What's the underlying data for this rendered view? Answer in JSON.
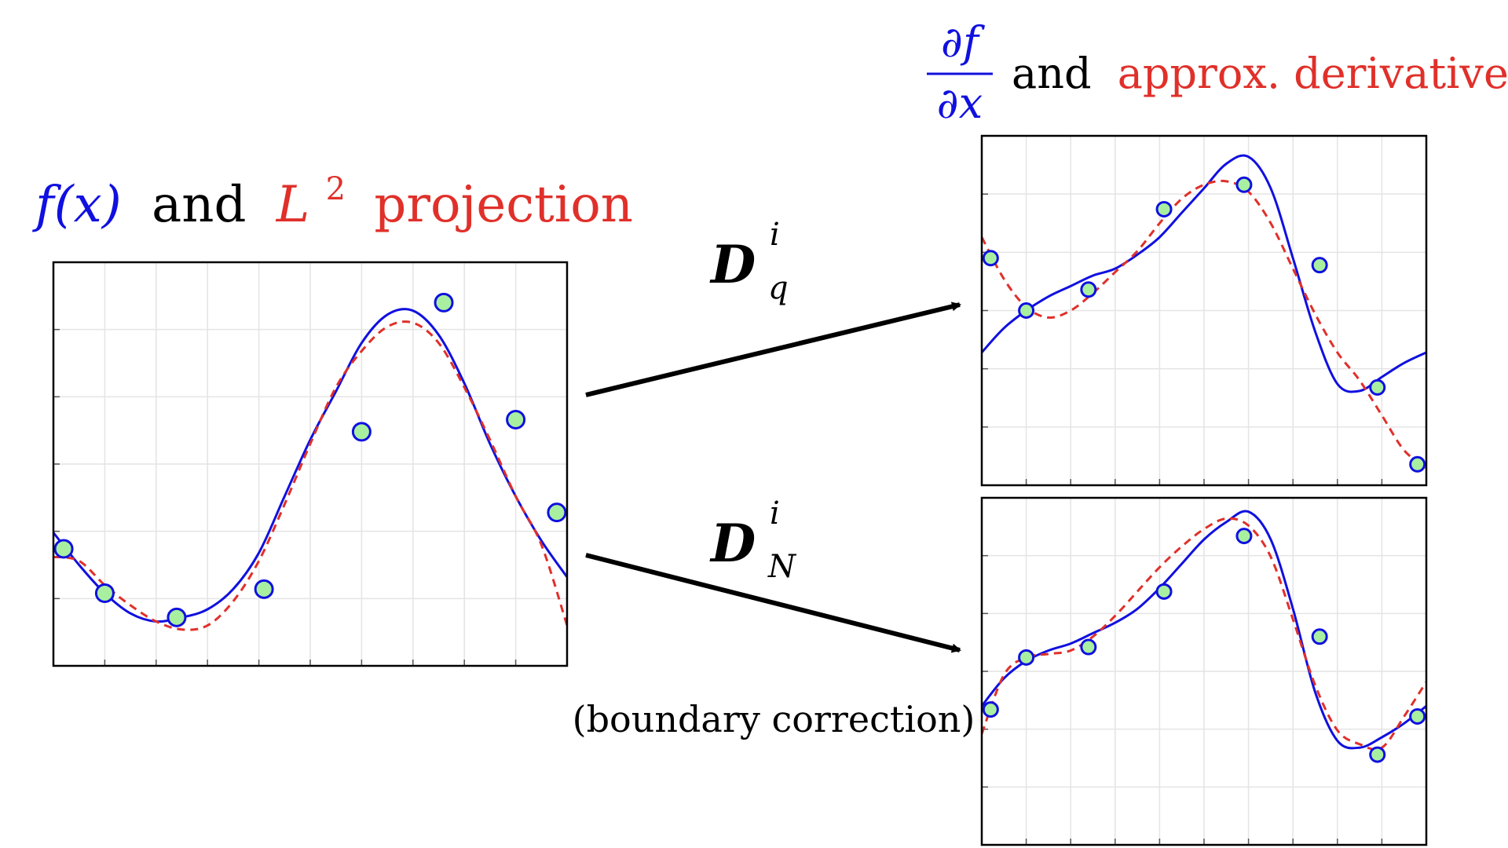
{
  "left_title": {
    "fx": "f(x)",
    "and": "and",
    "l2": "L",
    "l2_sup": "2",
    "projection": "projection"
  },
  "right_title": {
    "numerator": "∂f",
    "denominator": "∂x",
    "and": "and",
    "approx": "approx. derivative"
  },
  "operators": {
    "top": {
      "base": "D",
      "sup": "i",
      "sub": "q"
    },
    "bottom": {
      "base": "D",
      "sup": "i",
      "sub": "N"
    }
  },
  "boundary_note": "(boundary correction)",
  "colors": {
    "exact": "#1010e0",
    "approx": "#e0302a",
    "node_fill": "#a8f0a0",
    "node_stroke": "#1010e0",
    "grid": "#e4e4e4",
    "frame": "#000000",
    "arrow": "#000000"
  },
  "chart_data": [
    {
      "type": "line",
      "xlim": [
        0,
        1
      ],
      "ylim": [
        0,
        1
      ],
      "grid": true,
      "series": [
        {
          "role": "exact",
          "x": [
            0,
            0.05,
            0.1,
            0.15,
            0.2,
            0.25,
            0.3,
            0.35,
            0.4,
            0.45,
            0.5,
            0.55,
            0.6,
            0.65,
            0.7,
            0.75,
            0.8,
            0.85,
            0.9,
            0.95,
            1.0
          ],
          "y": [
            0.33,
            0.25,
            0.18,
            0.13,
            0.11,
            0.12,
            0.14,
            0.19,
            0.28,
            0.42,
            0.56,
            0.68,
            0.8,
            0.87,
            0.88,
            0.82,
            0.7,
            0.55,
            0.42,
            0.31,
            0.22
          ]
        },
        {
          "role": "approx",
          "x": [
            0,
            0.05,
            0.1,
            0.15,
            0.2,
            0.25,
            0.3,
            0.35,
            0.4,
            0.45,
            0.5,
            0.55,
            0.6,
            0.65,
            0.7,
            0.75,
            0.8,
            0.85,
            0.9,
            0.95,
            1.0
          ],
          "y": [
            0.27,
            0.26,
            0.2,
            0.15,
            0.11,
            0.09,
            0.1,
            0.16,
            0.26,
            0.4,
            0.55,
            0.69,
            0.78,
            0.84,
            0.85,
            0.8,
            0.69,
            0.56,
            0.42,
            0.3,
            0.1
          ]
        },
        {
          "role": "nodes",
          "x": [
            0.02,
            0.1,
            0.24,
            0.41,
            0.6,
            0.76,
            0.9,
            0.98
          ],
          "y": [
            0.29,
            0.18,
            0.12,
            0.19,
            0.58,
            0.9,
            0.61,
            0.38
          ]
        }
      ]
    },
    {
      "type": "line",
      "xlim": [
        0,
        1
      ],
      "ylim": [
        0,
        1
      ],
      "grid": true,
      "series": [
        {
          "role": "exact",
          "x": [
            0,
            0.05,
            0.1,
            0.15,
            0.2,
            0.25,
            0.3,
            0.35,
            0.4,
            0.45,
            0.5,
            0.55,
            0.6,
            0.65,
            0.7,
            0.75,
            0.8,
            0.85,
            0.9,
            0.95,
            1.0
          ],
          "y": [
            0.38,
            0.45,
            0.5,
            0.54,
            0.57,
            0.6,
            0.62,
            0.66,
            0.71,
            0.78,
            0.85,
            0.92,
            0.94,
            0.85,
            0.65,
            0.44,
            0.29,
            0.27,
            0.31,
            0.35,
            0.38
          ]
        },
        {
          "role": "approx",
          "x": [
            0,
            0.05,
            0.1,
            0.15,
            0.2,
            0.25,
            0.3,
            0.35,
            0.4,
            0.45,
            0.5,
            0.55,
            0.6,
            0.65,
            0.7,
            0.75,
            0.8,
            0.85,
            0.9,
            0.95,
            1.0
          ],
          "y": [
            0.71,
            0.59,
            0.51,
            0.48,
            0.5,
            0.55,
            0.61,
            0.67,
            0.75,
            0.82,
            0.86,
            0.87,
            0.84,
            0.75,
            0.62,
            0.49,
            0.38,
            0.3,
            0.2,
            0.1,
            0.05
          ]
        },
        {
          "role": "nodes",
          "x": [
            0.02,
            0.1,
            0.24,
            0.41,
            0.59,
            0.76,
            0.89,
            0.98
          ],
          "y": [
            0.65,
            0.5,
            0.56,
            0.79,
            0.86,
            0.63,
            0.28,
            0.06
          ]
        }
      ]
    },
    {
      "type": "line",
      "xlim": [
        0,
        1
      ],
      "ylim": [
        0,
        1
      ],
      "grid": true,
      "series": [
        {
          "role": "exact",
          "x": [
            0,
            0.05,
            0.1,
            0.15,
            0.2,
            0.25,
            0.3,
            0.35,
            0.4,
            0.45,
            0.5,
            0.55,
            0.6,
            0.65,
            0.7,
            0.75,
            0.8,
            0.85,
            0.9,
            0.95,
            1.0
          ],
          "y": [
            0.4,
            0.48,
            0.53,
            0.56,
            0.58,
            0.61,
            0.64,
            0.68,
            0.74,
            0.81,
            0.88,
            0.93,
            0.96,
            0.88,
            0.68,
            0.44,
            0.3,
            0.28,
            0.31,
            0.35,
            0.4
          ]
        },
        {
          "role": "approx",
          "x": [
            0,
            0.05,
            0.1,
            0.15,
            0.2,
            0.25,
            0.3,
            0.35,
            0.4,
            0.45,
            0.5,
            0.55,
            0.6,
            0.65,
            0.7,
            0.75,
            0.8,
            0.85,
            0.9,
            0.95,
            1.0
          ],
          "y": [
            0.32,
            0.49,
            0.54,
            0.55,
            0.56,
            0.6,
            0.66,
            0.73,
            0.8,
            0.86,
            0.91,
            0.94,
            0.92,
            0.83,
            0.65,
            0.46,
            0.33,
            0.29,
            0.28,
            0.37,
            0.47
          ]
        },
        {
          "role": "nodes",
          "x": [
            0.02,
            0.1,
            0.24,
            0.41,
            0.59,
            0.76,
            0.89,
            0.98
          ],
          "y": [
            0.39,
            0.54,
            0.57,
            0.73,
            0.89,
            0.6,
            0.26,
            0.37
          ]
        }
      ]
    }
  ]
}
